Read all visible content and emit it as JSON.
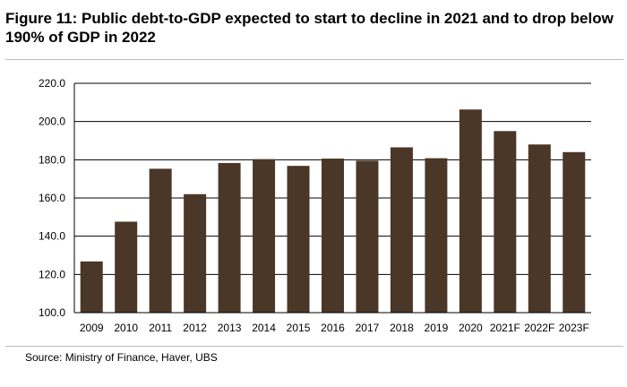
{
  "title": "Figure 11: Public debt-to-GDP expected to start to decline in 2021 and to drop below 190% of GDP in 2022",
  "source": "Source: Ministry of Finance, Haver, UBS",
  "colors": {
    "bar": "#4a3728",
    "grid": "#000000",
    "axis": "#000000"
  },
  "chart_data": {
    "type": "bar",
    "categories": [
      "2009",
      "2010",
      "2011",
      "2012",
      "2013",
      "2014",
      "2015",
      "2016",
      "2017",
      "2018",
      "2019",
      "2020",
      "2021F",
      "2022F",
      "2023F"
    ],
    "values": [
      126.8,
      147.6,
      175.3,
      162.0,
      178.3,
      180.3,
      176.8,
      180.6,
      179.5,
      186.5,
      180.8,
      206.3,
      195.0,
      188.0,
      184.0
    ],
    "title": "",
    "xlabel": "",
    "ylabel": "",
    "ylim": [
      100.0,
      220.0
    ],
    "yticks": [
      "100.0",
      "120.0",
      "140.0",
      "160.0",
      "180.0",
      "200.0",
      "220.0"
    ],
    "grid": true,
    "legend": "none"
  }
}
